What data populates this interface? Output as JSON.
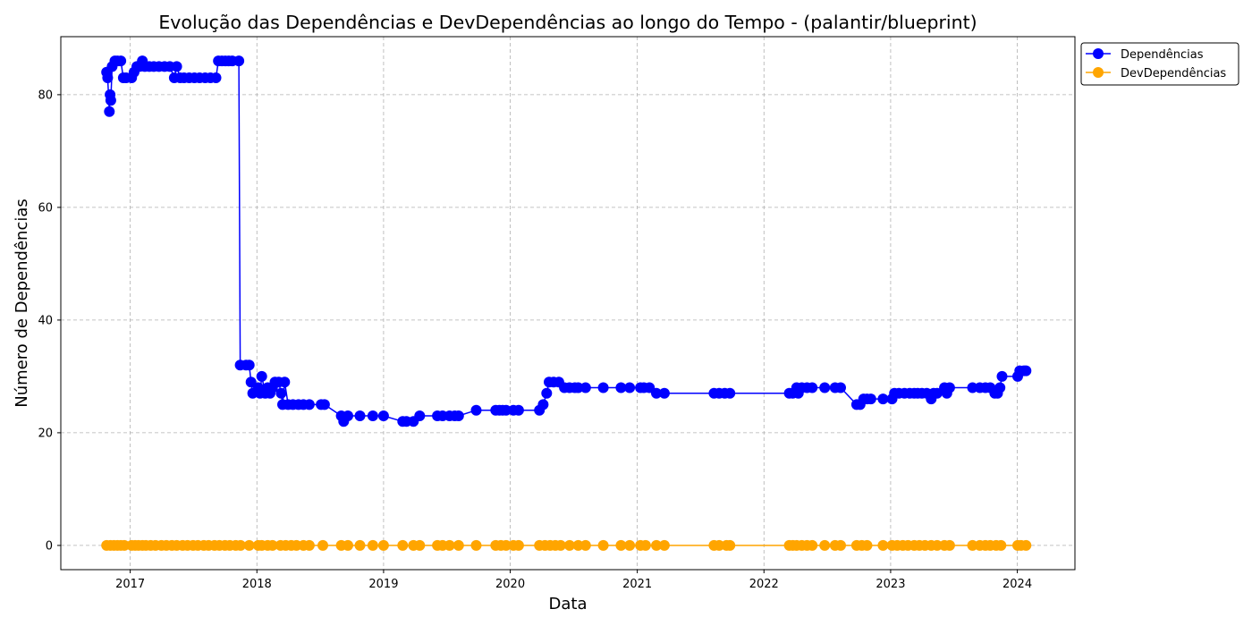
{
  "chart_data": {
    "type": "line",
    "title": "Evolução das Dependências e DevDependências ao longo do Tempo - (palantir/blueprint)",
    "xlabel": "Data",
    "ylabel": "Número de Dependências",
    "xlim": [
      "2016-06-15",
      "2024-06-15"
    ],
    "ylim": [
      -4.3,
      90.3
    ],
    "xticks": [
      "2017",
      "2018",
      "2019",
      "2020",
      "2021",
      "2022",
      "2023",
      "2024"
    ],
    "yticks": [
      0,
      20,
      40,
      60,
      80
    ],
    "grid": true,
    "legend": "outside-top-right",
    "series": [
      {
        "name": "Dependências",
        "color": "#0000ff",
        "points": [
          [
            "2016-10-25",
            84
          ],
          [
            "2016-10-28",
            83
          ],
          [
            "2016-11-02",
            77
          ],
          [
            "2016-11-04",
            80
          ],
          [
            "2016-11-06",
            79
          ],
          [
            "2016-11-10",
            85
          ],
          [
            "2016-11-18",
            86
          ],
          [
            "2016-11-25",
            86
          ],
          [
            "2016-12-05",
            86
          ],
          [
            "2016-12-12",
            83
          ],
          [
            "2016-12-20",
            83
          ],
          [
            "2017-01-05",
            83
          ],
          [
            "2017-01-12",
            84
          ],
          [
            "2017-01-20",
            85
          ],
          [
            "2017-01-28",
            85
          ],
          [
            "2017-02-05",
            86
          ],
          [
            "2017-02-12",
            85
          ],
          [
            "2017-02-25",
            85
          ],
          [
            "2017-03-10",
            85
          ],
          [
            "2017-03-25",
            85
          ],
          [
            "2017-04-10",
            85
          ],
          [
            "2017-04-25",
            85
          ],
          [
            "2017-05-08",
            83
          ],
          [
            "2017-05-15",
            85
          ],
          [
            "2017-05-25",
            83
          ],
          [
            "2017-06-05",
            83
          ],
          [
            "2017-06-20",
            83
          ],
          [
            "2017-07-05",
            83
          ],
          [
            "2017-07-20",
            83
          ],
          [
            "2017-08-05",
            83
          ],
          [
            "2017-08-20",
            83
          ],
          [
            "2017-09-05",
            83
          ],
          [
            "2017-09-12",
            86
          ],
          [
            "2017-09-22",
            86
          ],
          [
            "2017-10-02",
            86
          ],
          [
            "2017-10-12",
            86
          ],
          [
            "2017-10-22",
            86
          ],
          [
            "2017-11-10",
            86
          ],
          [
            "2017-11-14",
            32
          ],
          [
            "2017-12-01",
            32
          ],
          [
            "2017-12-10",
            32
          ],
          [
            "2017-12-15",
            29
          ],
          [
            "2017-12-20",
            27
          ],
          [
            "2018-01-05",
            28
          ],
          [
            "2018-01-10",
            27
          ],
          [
            "2018-01-15",
            30
          ],
          [
            "2018-01-25",
            27
          ],
          [
            "2018-02-01",
            28
          ],
          [
            "2018-02-08",
            27
          ],
          [
            "2018-02-15",
            28
          ],
          [
            "2018-02-22",
            29
          ],
          [
            "2018-03-05",
            29
          ],
          [
            "2018-03-12",
            27
          ],
          [
            "2018-03-16",
            25
          ],
          [
            "2018-03-22",
            29
          ],
          [
            "2018-04-01",
            25
          ],
          [
            "2018-04-15",
            25
          ],
          [
            "2018-05-01",
            25
          ],
          [
            "2018-05-15",
            25
          ],
          [
            "2018-06-01",
            25
          ],
          [
            "2018-07-05",
            25
          ],
          [
            "2018-07-15",
            25
          ],
          [
            "2018-09-01",
            23
          ],
          [
            "2018-09-08",
            22
          ],
          [
            "2018-09-20",
            23
          ],
          [
            "2018-10-25",
            23
          ],
          [
            "2018-12-01",
            23
          ],
          [
            "2019-01-01",
            23
          ],
          [
            "2019-02-25",
            22
          ],
          [
            "2019-03-08",
            22
          ],
          [
            "2019-03-28",
            22
          ],
          [
            "2019-04-15",
            23
          ],
          [
            "2019-06-05",
            23
          ],
          [
            "2019-06-20",
            23
          ],
          [
            "2019-07-10",
            23
          ],
          [
            "2019-07-25",
            23
          ],
          [
            "2019-08-05",
            23
          ],
          [
            "2019-09-25",
            24
          ],
          [
            "2019-11-20",
            24
          ],
          [
            "2019-12-01",
            24
          ],
          [
            "2019-12-10",
            24
          ],
          [
            "2019-12-20",
            24
          ],
          [
            "2020-01-10",
            24
          ],
          [
            "2020-01-25",
            24
          ],
          [
            "2020-03-25",
            24
          ],
          [
            "2020-04-05",
            25
          ],
          [
            "2020-04-15",
            27
          ],
          [
            "2020-04-22",
            29
          ],
          [
            "2020-05-05",
            29
          ],
          [
            "2020-05-20",
            29
          ],
          [
            "2020-06-05",
            28
          ],
          [
            "2020-06-20",
            28
          ],
          [
            "2020-07-05",
            28
          ],
          [
            "2020-07-15",
            28
          ],
          [
            "2020-08-05",
            28
          ],
          [
            "2020-09-25",
            28
          ],
          [
            "2020-11-15",
            28
          ],
          [
            "2020-12-10",
            28
          ],
          [
            "2021-01-10",
            28
          ],
          [
            "2021-01-20",
            28
          ],
          [
            "2021-02-05",
            28
          ],
          [
            "2021-02-25",
            27
          ],
          [
            "2021-03-20",
            27
          ],
          [
            "2021-08-10",
            27
          ],
          [
            "2021-08-25",
            27
          ],
          [
            "2021-09-10",
            27
          ],
          [
            "2021-09-25",
            27
          ],
          [
            "2022-03-15",
            27
          ],
          [
            "2022-03-25",
            27
          ],
          [
            "2022-04-05",
            28
          ],
          [
            "2022-04-10",
            27
          ],
          [
            "2022-04-20",
            28
          ],
          [
            "2022-05-05",
            28
          ],
          [
            "2022-05-20",
            28
          ],
          [
            "2022-06-25",
            28
          ],
          [
            "2022-07-25",
            28
          ],
          [
            "2022-08-10",
            28
          ],
          [
            "2022-09-25",
            25
          ],
          [
            "2022-10-05",
            25
          ],
          [
            "2022-10-15",
            26
          ],
          [
            "2022-10-25",
            26
          ],
          [
            "2022-11-05",
            26
          ],
          [
            "2022-12-10",
            26
          ],
          [
            "2023-01-05",
            26
          ],
          [
            "2023-01-12",
            27
          ],
          [
            "2023-01-25",
            27
          ],
          [
            "2023-02-10",
            27
          ],
          [
            "2023-02-25",
            27
          ],
          [
            "2023-03-10",
            27
          ],
          [
            "2023-03-20",
            27
          ],
          [
            "2023-04-01",
            27
          ],
          [
            "2023-04-15",
            27
          ],
          [
            "2023-04-28",
            26
          ],
          [
            "2023-05-05",
            27
          ],
          [
            "2023-05-15",
            27
          ],
          [
            "2023-06-05",
            28
          ],
          [
            "2023-06-12",
            27
          ],
          [
            "2023-06-20",
            28
          ],
          [
            "2023-08-25",
            28
          ],
          [
            "2023-09-15",
            28
          ],
          [
            "2023-10-01",
            28
          ],
          [
            "2023-10-15",
            28
          ],
          [
            "2023-10-28",
            27
          ],
          [
            "2023-11-05",
            27
          ],
          [
            "2023-11-12",
            28
          ],
          [
            "2023-11-18",
            30
          ],
          [
            "2024-01-02",
            30
          ],
          [
            "2024-01-08",
            31
          ],
          [
            "2024-01-20",
            31
          ],
          [
            "2024-01-26",
            31
          ]
        ]
      },
      {
        "name": "DevDependências",
        "color": "#ffa500",
        "points": [
          [
            "2016-10-25",
            0
          ],
          [
            "2016-11-05",
            0
          ],
          [
            "2016-11-15",
            0
          ],
          [
            "2016-11-25",
            0
          ],
          [
            "2016-12-05",
            0
          ],
          [
            "2016-12-15",
            0
          ],
          [
            "2017-01-05",
            0
          ],
          [
            "2017-01-15",
            0
          ],
          [
            "2017-01-25",
            0
          ],
          [
            "2017-02-05",
            0
          ],
          [
            "2017-02-15",
            0
          ],
          [
            "2017-03-01",
            0
          ],
          [
            "2017-03-15",
            0
          ],
          [
            "2017-04-01",
            0
          ],
          [
            "2017-04-15",
            0
          ],
          [
            "2017-05-01",
            0
          ],
          [
            "2017-05-15",
            0
          ],
          [
            "2017-06-01",
            0
          ],
          [
            "2017-06-15",
            0
          ],
          [
            "2017-07-01",
            0
          ],
          [
            "2017-07-15",
            0
          ],
          [
            "2017-08-01",
            0
          ],
          [
            "2017-08-15",
            0
          ],
          [
            "2017-09-01",
            0
          ],
          [
            "2017-09-15",
            0
          ],
          [
            "2017-10-01",
            0
          ],
          [
            "2017-10-15",
            0
          ],
          [
            "2017-11-01",
            0
          ],
          [
            "2017-11-15",
            0
          ],
          [
            "2017-12-10",
            0
          ],
          [
            "2018-01-05",
            0
          ],
          [
            "2018-01-15",
            0
          ],
          [
            "2018-02-01",
            0
          ],
          [
            "2018-02-15",
            0
          ],
          [
            "2018-03-10",
            0
          ],
          [
            "2018-03-25",
            0
          ],
          [
            "2018-04-10",
            0
          ],
          [
            "2018-04-25",
            0
          ],
          [
            "2018-05-15",
            0
          ],
          [
            "2018-06-01",
            0
          ],
          [
            "2018-07-10",
            0
          ],
          [
            "2018-09-01",
            0
          ],
          [
            "2018-09-20",
            0
          ],
          [
            "2018-10-25",
            0
          ],
          [
            "2018-12-01",
            0
          ],
          [
            "2019-01-01",
            0
          ],
          [
            "2019-02-25",
            0
          ],
          [
            "2019-03-28",
            0
          ],
          [
            "2019-04-15",
            0
          ],
          [
            "2019-06-05",
            0
          ],
          [
            "2019-06-20",
            0
          ],
          [
            "2019-07-10",
            0
          ],
          [
            "2019-08-05",
            0
          ],
          [
            "2019-09-25",
            0
          ],
          [
            "2019-11-20",
            0
          ],
          [
            "2019-12-05",
            0
          ],
          [
            "2019-12-20",
            0
          ],
          [
            "2020-01-10",
            0
          ],
          [
            "2020-01-25",
            0
          ],
          [
            "2020-03-25",
            0
          ],
          [
            "2020-04-10",
            0
          ],
          [
            "2020-04-25",
            0
          ],
          [
            "2020-05-10",
            0
          ],
          [
            "2020-05-25",
            0
          ],
          [
            "2020-06-20",
            0
          ],
          [
            "2020-07-15",
            0
          ],
          [
            "2020-08-05",
            0
          ],
          [
            "2020-09-25",
            0
          ],
          [
            "2020-11-15",
            0
          ],
          [
            "2020-12-10",
            0
          ],
          [
            "2021-01-10",
            0
          ],
          [
            "2021-01-25",
            0
          ],
          [
            "2021-02-25",
            0
          ],
          [
            "2021-03-20",
            0
          ],
          [
            "2021-08-10",
            0
          ],
          [
            "2021-08-25",
            0
          ],
          [
            "2021-09-15",
            0
          ],
          [
            "2021-09-25",
            0
          ],
          [
            "2022-03-15",
            0
          ],
          [
            "2022-03-25",
            0
          ],
          [
            "2022-04-05",
            0
          ],
          [
            "2022-04-20",
            0
          ],
          [
            "2022-05-05",
            0
          ],
          [
            "2022-05-20",
            0
          ],
          [
            "2022-06-25",
            0
          ],
          [
            "2022-07-25",
            0
          ],
          [
            "2022-08-10",
            0
          ],
          [
            "2022-09-25",
            0
          ],
          [
            "2022-10-10",
            0
          ],
          [
            "2022-10-25",
            0
          ],
          [
            "2022-12-10",
            0
          ],
          [
            "2023-01-05",
            0
          ],
          [
            "2023-01-20",
            0
          ],
          [
            "2023-02-05",
            0
          ],
          [
            "2023-02-20",
            0
          ],
          [
            "2023-03-10",
            0
          ],
          [
            "2023-03-25",
            0
          ],
          [
            "2023-04-10",
            0
          ],
          [
            "2023-04-28",
            0
          ],
          [
            "2023-05-15",
            0
          ],
          [
            "2023-06-05",
            0
          ],
          [
            "2023-06-20",
            0
          ],
          [
            "2023-08-25",
            0
          ],
          [
            "2023-09-15",
            0
          ],
          [
            "2023-10-01",
            0
          ],
          [
            "2023-10-15",
            0
          ],
          [
            "2023-11-01",
            0
          ],
          [
            "2023-11-15",
            0
          ],
          [
            "2024-01-02",
            0
          ],
          [
            "2024-01-12",
            0
          ],
          [
            "2024-01-26",
            0
          ]
        ]
      }
    ]
  }
}
